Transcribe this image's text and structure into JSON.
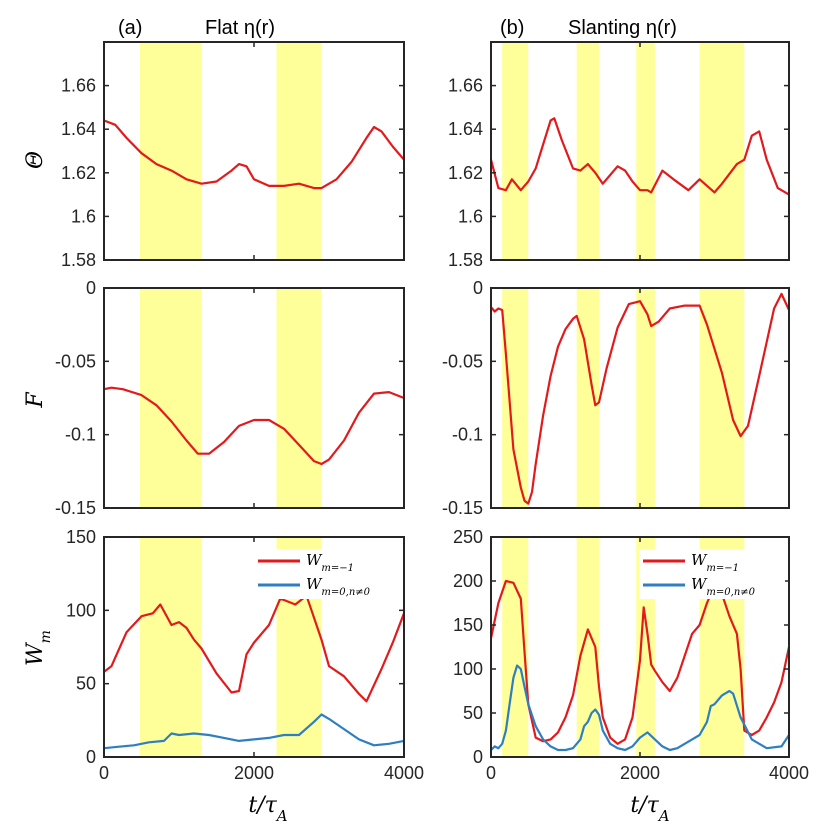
{
  "colors": {
    "line_a": "#e31a1c",
    "line_b": "#2e7fc2",
    "band": "#ffff99",
    "axis": "#262626"
  },
  "panel_a_title": "(a)",
  "panel_a_name": "Flat η(r)",
  "panel_b_title": "(b)",
  "panel_b_name": "Slanting η(r)",
  "xlabel": "t/τA",
  "legend": {
    "series1": "Wm=−1",
    "series2": "Wm=0,n≠0"
  },
  "chart_data": [
    {
      "id": "a_theta",
      "type": "line",
      "ylabel": "Θ",
      "xlim": [
        0,
        4000
      ],
      "ylim": [
        1.58,
        1.68
      ],
      "yticks": [
        1.58,
        1.6,
        1.62,
        1.64,
        1.66
      ],
      "ytick_labels": [
        "1.58",
        "1.6",
        "1.62",
        "1.64",
        "1.66"
      ],
      "xticks": [
        0,
        2000,
        4000
      ],
      "xtick_labels": [],
      "bands": [
        [
          480,
          1300
        ],
        [
          2300,
          2900
        ]
      ],
      "series": [
        {
          "name": "Θ",
          "color": "#e31a1c",
          "x": [
            0,
            150,
            300,
            500,
            700,
            900,
            1100,
            1300,
            1500,
            1700,
            1800,
            1900,
            2000,
            2200,
            2400,
            2600,
            2800,
            2900,
            3100,
            3300,
            3500,
            3600,
            3700,
            3850,
            4000
          ],
          "y": [
            1.644,
            1.642,
            1.636,
            1.629,
            1.624,
            1.621,
            1.617,
            1.615,
            1.616,
            1.621,
            1.624,
            1.623,
            1.617,
            1.614,
            1.614,
            1.615,
            1.613,
            1.613,
            1.617,
            1.625,
            1.636,
            1.641,
            1.639,
            1.632,
            1.626
          ]
        }
      ]
    },
    {
      "id": "b_theta",
      "type": "line",
      "ylabel": "",
      "xlim": [
        0,
        4000
      ],
      "ylim": [
        1.58,
        1.68
      ],
      "yticks": [
        1.58,
        1.6,
        1.62,
        1.64,
        1.66
      ],
      "ytick_labels": [
        "1.58",
        "1.6",
        "1.62",
        "1.64",
        "1.66"
      ],
      "xticks": [
        0,
        2000,
        4000
      ],
      "xtick_labels": [],
      "bands": [
        [
          150,
          500
        ],
        [
          1150,
          1450
        ],
        [
          1950,
          2200
        ],
        [
          2800,
          3400
        ]
      ],
      "series": [
        {
          "name": "Θ",
          "color": "#e31a1c",
          "x": [
            0,
            100,
            200,
            280,
            400,
            500,
            600,
            700,
            800,
            850,
            950,
            1100,
            1200,
            1300,
            1400,
            1500,
            1600,
            1700,
            1800,
            1900,
            2000,
            2100,
            2150,
            2300,
            2450,
            2650,
            2800,
            3000,
            3100,
            3300,
            3400,
            3500,
            3600,
            3700,
            3850,
            4000
          ],
          "y": [
            1.626,
            1.613,
            1.612,
            1.617,
            1.612,
            1.616,
            1.622,
            1.633,
            1.644,
            1.645,
            1.635,
            1.622,
            1.621,
            1.624,
            1.62,
            1.615,
            1.619,
            1.623,
            1.621,
            1.616,
            1.612,
            1.612,
            1.611,
            1.621,
            1.617,
            1.612,
            1.617,
            1.611,
            1.615,
            1.624,
            1.626,
            1.637,
            1.639,
            1.626,
            1.613,
            1.61
          ]
        }
      ]
    },
    {
      "id": "a_F",
      "type": "line",
      "ylabel": "F",
      "xlim": [
        0,
        4000
      ],
      "ylim": [
        -0.15,
        0
      ],
      "yticks": [
        -0.15,
        -0.1,
        -0.05,
        0
      ],
      "ytick_labels": [
        "-0.15",
        "-0.1",
        "-0.05",
        "0"
      ],
      "xticks": [
        0,
        2000,
        4000
      ],
      "xtick_labels": [],
      "bands": [
        [
          480,
          1300
        ],
        [
          2300,
          2900
        ]
      ],
      "series": [
        {
          "name": "F",
          "color": "#e31a1c",
          "x": [
            0,
            100,
            250,
            500,
            700,
            900,
            1100,
            1250,
            1400,
            1600,
            1800,
            2000,
            2200,
            2400,
            2600,
            2800,
            2900,
            3000,
            3200,
            3400,
            3600,
            3800,
            4000
          ],
          "y": [
            -0.069,
            -0.068,
            -0.069,
            -0.073,
            -0.08,
            -0.091,
            -0.104,
            -0.113,
            -0.113,
            -0.105,
            -0.094,
            -0.09,
            -0.09,
            -0.096,
            -0.107,
            -0.118,
            -0.12,
            -0.117,
            -0.104,
            -0.085,
            -0.072,
            -0.071,
            -0.075
          ]
        }
      ]
    },
    {
      "id": "b_F",
      "type": "line",
      "ylabel": "",
      "xlim": [
        0,
        4000
      ],
      "ylim": [
        -0.15,
        0
      ],
      "yticks": [
        -0.15,
        -0.1,
        -0.05,
        0
      ],
      "ytick_labels": [
        "-0.15",
        "-0.1",
        "-0.05",
        "0"
      ],
      "xticks": [
        0,
        2000,
        4000
      ],
      "xtick_labels": [],
      "bands": [
        [
          150,
          500
        ],
        [
          1150,
          1450
        ],
        [
          1950,
          2200
        ],
        [
          2800,
          3400
        ]
      ],
      "series": [
        {
          "name": "F",
          "color": "#e31a1c",
          "x": [
            0,
            50,
            100,
            150,
            200,
            300,
            400,
            450,
            500,
            550,
            600,
            700,
            800,
            900,
            1000,
            1100,
            1150,
            1250,
            1350,
            1400,
            1450,
            1550,
            1700,
            1850,
            2000,
            2100,
            2150,
            2250,
            2400,
            2600,
            2800,
            2900,
            3100,
            3250,
            3350,
            3450,
            3600,
            3800,
            3900,
            4000
          ],
          "y": [
            -0.013,
            -0.016,
            -0.014,
            -0.015,
            -0.045,
            -0.11,
            -0.136,
            -0.145,
            -0.147,
            -0.139,
            -0.12,
            -0.087,
            -0.06,
            -0.04,
            -0.028,
            -0.021,
            -0.019,
            -0.035,
            -0.066,
            -0.08,
            -0.078,
            -0.055,
            -0.027,
            -0.011,
            -0.009,
            -0.018,
            -0.026,
            -0.023,
            -0.014,
            -0.012,
            -0.012,
            -0.025,
            -0.058,
            -0.09,
            -0.101,
            -0.094,
            -0.06,
            -0.014,
            -0.004,
            -0.015
          ]
        }
      ]
    },
    {
      "id": "a_W",
      "type": "line",
      "ylabel": "Wm",
      "xlim": [
        0,
        4000
      ],
      "ylim": [
        0,
        150
      ],
      "yticks": [
        0,
        50,
        100,
        150
      ],
      "ytick_labels": [
        "0",
        "50",
        "100",
        "150"
      ],
      "xticks": [
        0,
        2000,
        4000
      ],
      "xtick_labels": [
        "0",
        "2000",
        "4000"
      ],
      "bands": [
        [
          480,
          1300
        ],
        [
          2300,
          2900
        ]
      ],
      "legend": true,
      "series": [
        {
          "name": "Wm=−1",
          "color": "#e31a1c",
          "x": [
            0,
            100,
            300,
            500,
            650,
            750,
            900,
            1000,
            1100,
            1200,
            1300,
            1500,
            1700,
            1800,
            1900,
            2000,
            2200,
            2350,
            2450,
            2550,
            2650,
            2700,
            2800,
            2900,
            3000,
            3200,
            3400,
            3500,
            3700,
            3850,
            4000
          ],
          "y": [
            58,
            62,
            85,
            96,
            98,
            104,
            90,
            92,
            88,
            80,
            74,
            57,
            44,
            45,
            70,
            78,
            90,
            108,
            106,
            104,
            108,
            110,
            95,
            80,
            62,
            55,
            43,
            38,
            60,
            78,
            98
          ]
        },
        {
          "name": "Wm=0,n≠0",
          "color": "#2e7fc2",
          "x": [
            0,
            200,
            400,
            600,
            800,
            900,
            1000,
            1200,
            1400,
            1600,
            1800,
            2000,
            2200,
            2400,
            2600,
            2800,
            2900,
            3000,
            3200,
            3400,
            3600,
            3800,
            4000
          ],
          "y": [
            6,
            7,
            8,
            10,
            11,
            16,
            15,
            16,
            15,
            13,
            11,
            12,
            13,
            15,
            15,
            24,
            29,
            26,
            19,
            12,
            8,
            9,
            11
          ]
        }
      ]
    },
    {
      "id": "b_W",
      "type": "line",
      "ylabel": "",
      "xlim": [
        0,
        4000
      ],
      "ylim": [
        0,
        250
      ],
      "yticks": [
        0,
        50,
        100,
        150,
        200,
        250
      ],
      "ytick_labels": [
        "0",
        "50",
        "100",
        "150",
        "200",
        "250"
      ],
      "xticks": [
        0,
        2000,
        4000
      ],
      "xtick_labels": [
        "0",
        "2000",
        "4000"
      ],
      "bands": [
        [
          150,
          500
        ],
        [
          1150,
          1450
        ],
        [
          1950,
          2200
        ],
        [
          2800,
          3400
        ]
      ],
      "legend": true,
      "series": [
        {
          "name": "Wm=−1",
          "color": "#e31a1c",
          "x": [
            0,
            100,
            200,
            300,
            400,
            450,
            500,
            600,
            700,
            800,
            900,
            1000,
            1100,
            1200,
            1300,
            1400,
            1450,
            1500,
            1600,
            1700,
            1800,
            1900,
            2000,
            2050,
            2100,
            2150,
            2200,
            2300,
            2400,
            2500,
            2600,
            2700,
            2800,
            2900,
            3000,
            3100,
            3200,
            3300,
            3350,
            3400,
            3500,
            3600,
            3700,
            3800,
            3900,
            4000
          ],
          "y": [
            135,
            175,
            200,
            198,
            180,
            120,
            60,
            22,
            18,
            20,
            28,
            45,
            70,
            115,
            145,
            125,
            80,
            45,
            22,
            15,
            20,
            45,
            110,
            170,
            140,
            105,
            98,
            85,
            75,
            90,
            115,
            140,
            150,
            175,
            195,
            185,
            160,
            140,
            100,
            30,
            25,
            30,
            45,
            62,
            85,
            125
          ]
        },
        {
          "name": "Wm=0,n≠0",
          "color": "#2e7fc2",
          "x": [
            0,
            50,
            100,
            150,
            200,
            250,
            300,
            350,
            400,
            450,
            500,
            600,
            700,
            800,
            900,
            1000,
            1100,
            1200,
            1250,
            1300,
            1350,
            1400,
            1450,
            1500,
            1600,
            1700,
            1800,
            1900,
            2000,
            2100,
            2200,
            2300,
            2400,
            2500,
            2600,
            2700,
            2800,
            2900,
            2950,
            3000,
            3100,
            3200,
            3250,
            3350,
            3500,
            3700,
            3900,
            4000
          ],
          "y": [
            8,
            12,
            10,
            15,
            30,
            60,
            90,
            104,
            100,
            80,
            60,
            35,
            20,
            12,
            8,
            8,
            10,
            20,
            35,
            40,
            50,
            54,
            48,
            30,
            15,
            10,
            8,
            12,
            22,
            28,
            20,
            12,
            8,
            10,
            15,
            20,
            25,
            40,
            58,
            60,
            70,
            75,
            72,
            45,
            20,
            10,
            12,
            25
          ]
        }
      ]
    }
  ]
}
